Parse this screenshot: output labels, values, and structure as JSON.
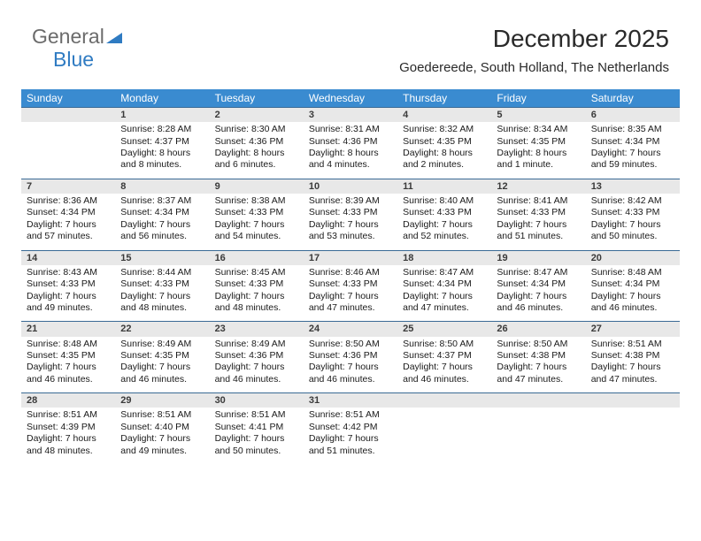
{
  "logo": {
    "part1": "General",
    "part2": "Blue",
    "tri_color": "#2f7bc2"
  },
  "title": "December 2025",
  "subtitle": "Goedereede, South Holland, The Netherlands",
  "colors": {
    "header_bg": "#3a8bd0",
    "daynum_bg": "#e8e8e8",
    "rule": "#3a6a95"
  },
  "days_of_week": [
    "Sunday",
    "Monday",
    "Tuesday",
    "Wednesday",
    "Thursday",
    "Friday",
    "Saturday"
  ],
  "weeks": [
    {
      "nums": [
        "",
        "1",
        "2",
        "3",
        "4",
        "5",
        "6"
      ],
      "cells": [
        {
          "sunrise": "",
          "sunset": "",
          "daylight": ""
        },
        {
          "sunrise": "Sunrise: 8:28 AM",
          "sunset": "Sunset: 4:37 PM",
          "daylight": "Daylight: 8 hours and 8 minutes."
        },
        {
          "sunrise": "Sunrise: 8:30 AM",
          "sunset": "Sunset: 4:36 PM",
          "daylight": "Daylight: 8 hours and 6 minutes."
        },
        {
          "sunrise": "Sunrise: 8:31 AM",
          "sunset": "Sunset: 4:36 PM",
          "daylight": "Daylight: 8 hours and 4 minutes."
        },
        {
          "sunrise": "Sunrise: 8:32 AM",
          "sunset": "Sunset: 4:35 PM",
          "daylight": "Daylight: 8 hours and 2 minutes."
        },
        {
          "sunrise": "Sunrise: 8:34 AM",
          "sunset": "Sunset: 4:35 PM",
          "daylight": "Daylight: 8 hours and 1 minute."
        },
        {
          "sunrise": "Sunrise: 8:35 AM",
          "sunset": "Sunset: 4:34 PM",
          "daylight": "Daylight: 7 hours and 59 minutes."
        }
      ]
    },
    {
      "nums": [
        "7",
        "8",
        "9",
        "10",
        "11",
        "12",
        "13"
      ],
      "cells": [
        {
          "sunrise": "Sunrise: 8:36 AM",
          "sunset": "Sunset: 4:34 PM",
          "daylight": "Daylight: 7 hours and 57 minutes."
        },
        {
          "sunrise": "Sunrise: 8:37 AM",
          "sunset": "Sunset: 4:34 PM",
          "daylight": "Daylight: 7 hours and 56 minutes."
        },
        {
          "sunrise": "Sunrise: 8:38 AM",
          "sunset": "Sunset: 4:33 PM",
          "daylight": "Daylight: 7 hours and 54 minutes."
        },
        {
          "sunrise": "Sunrise: 8:39 AM",
          "sunset": "Sunset: 4:33 PM",
          "daylight": "Daylight: 7 hours and 53 minutes."
        },
        {
          "sunrise": "Sunrise: 8:40 AM",
          "sunset": "Sunset: 4:33 PM",
          "daylight": "Daylight: 7 hours and 52 minutes."
        },
        {
          "sunrise": "Sunrise: 8:41 AM",
          "sunset": "Sunset: 4:33 PM",
          "daylight": "Daylight: 7 hours and 51 minutes."
        },
        {
          "sunrise": "Sunrise: 8:42 AM",
          "sunset": "Sunset: 4:33 PM",
          "daylight": "Daylight: 7 hours and 50 minutes."
        }
      ]
    },
    {
      "nums": [
        "14",
        "15",
        "16",
        "17",
        "18",
        "19",
        "20"
      ],
      "cells": [
        {
          "sunrise": "Sunrise: 8:43 AM",
          "sunset": "Sunset: 4:33 PM",
          "daylight": "Daylight: 7 hours and 49 minutes."
        },
        {
          "sunrise": "Sunrise: 8:44 AM",
          "sunset": "Sunset: 4:33 PM",
          "daylight": "Daylight: 7 hours and 48 minutes."
        },
        {
          "sunrise": "Sunrise: 8:45 AM",
          "sunset": "Sunset: 4:33 PM",
          "daylight": "Daylight: 7 hours and 48 minutes."
        },
        {
          "sunrise": "Sunrise: 8:46 AM",
          "sunset": "Sunset: 4:33 PM",
          "daylight": "Daylight: 7 hours and 47 minutes."
        },
        {
          "sunrise": "Sunrise: 8:47 AM",
          "sunset": "Sunset: 4:34 PM",
          "daylight": "Daylight: 7 hours and 47 minutes."
        },
        {
          "sunrise": "Sunrise: 8:47 AM",
          "sunset": "Sunset: 4:34 PM",
          "daylight": "Daylight: 7 hours and 46 minutes."
        },
        {
          "sunrise": "Sunrise: 8:48 AM",
          "sunset": "Sunset: 4:34 PM",
          "daylight": "Daylight: 7 hours and 46 minutes."
        }
      ]
    },
    {
      "nums": [
        "21",
        "22",
        "23",
        "24",
        "25",
        "26",
        "27"
      ],
      "cells": [
        {
          "sunrise": "Sunrise: 8:48 AM",
          "sunset": "Sunset: 4:35 PM",
          "daylight": "Daylight: 7 hours and 46 minutes."
        },
        {
          "sunrise": "Sunrise: 8:49 AM",
          "sunset": "Sunset: 4:35 PM",
          "daylight": "Daylight: 7 hours and 46 minutes."
        },
        {
          "sunrise": "Sunrise: 8:49 AM",
          "sunset": "Sunset: 4:36 PM",
          "daylight": "Daylight: 7 hours and 46 minutes."
        },
        {
          "sunrise": "Sunrise: 8:50 AM",
          "sunset": "Sunset: 4:36 PM",
          "daylight": "Daylight: 7 hours and 46 minutes."
        },
        {
          "sunrise": "Sunrise: 8:50 AM",
          "sunset": "Sunset: 4:37 PM",
          "daylight": "Daylight: 7 hours and 46 minutes."
        },
        {
          "sunrise": "Sunrise: 8:50 AM",
          "sunset": "Sunset: 4:38 PM",
          "daylight": "Daylight: 7 hours and 47 minutes."
        },
        {
          "sunrise": "Sunrise: 8:51 AM",
          "sunset": "Sunset: 4:38 PM",
          "daylight": "Daylight: 7 hours and 47 minutes."
        }
      ]
    },
    {
      "nums": [
        "28",
        "29",
        "30",
        "31",
        "",
        "",
        ""
      ],
      "cells": [
        {
          "sunrise": "Sunrise: 8:51 AM",
          "sunset": "Sunset: 4:39 PM",
          "daylight": "Daylight: 7 hours and 48 minutes."
        },
        {
          "sunrise": "Sunrise: 8:51 AM",
          "sunset": "Sunset: 4:40 PM",
          "daylight": "Daylight: 7 hours and 49 minutes."
        },
        {
          "sunrise": "Sunrise: 8:51 AM",
          "sunset": "Sunset: 4:41 PM",
          "daylight": "Daylight: 7 hours and 50 minutes."
        },
        {
          "sunrise": "Sunrise: 8:51 AM",
          "sunset": "Sunset: 4:42 PM",
          "daylight": "Daylight: 7 hours and 51 minutes."
        },
        {
          "sunrise": "",
          "sunset": "",
          "daylight": ""
        },
        {
          "sunrise": "",
          "sunset": "",
          "daylight": ""
        },
        {
          "sunrise": "",
          "sunset": "",
          "daylight": ""
        }
      ]
    }
  ]
}
